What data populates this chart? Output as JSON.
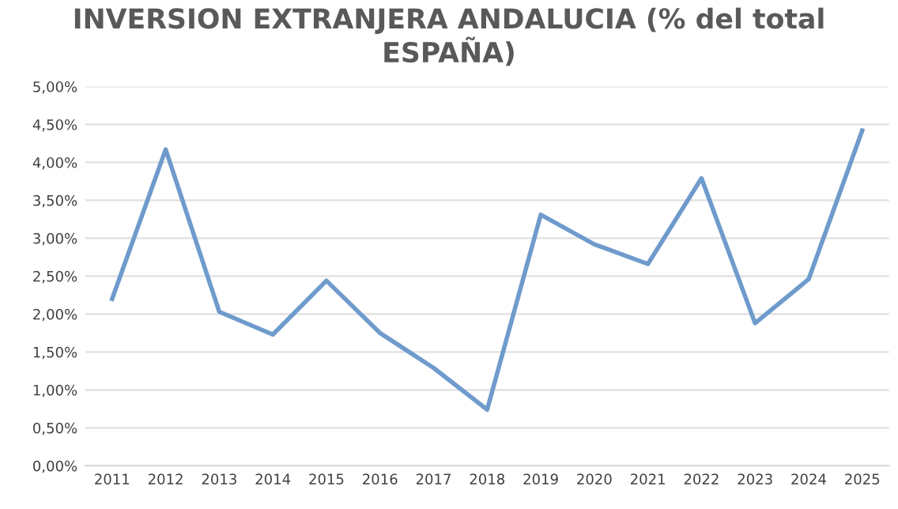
{
  "chart_data": {
    "type": "line",
    "title": "INVERSION EXTRANJERA ANDALUCIA (% del total ESPAÑA)",
    "categories": [
      "2011",
      "2012",
      "2013",
      "2014",
      "2015",
      "2016",
      "2017",
      "2018",
      "2019",
      "2020",
      "2021",
      "2022",
      "2023",
      "2024",
      "2025"
    ],
    "series": [
      {
        "color": "#6f9bcc",
        "values": [
          2.2,
          4.17,
          2.03,
          1.73,
          2.44,
          1.75,
          1.29,
          0.74,
          3.31,
          2.92,
          2.66,
          3.79,
          1.88,
          2.46,
          4.42
        ]
      }
    ],
    "ylim": [
      0,
      5
    ],
    "yticks": [
      {
        "value": 0,
        "label": "0,00%"
      },
      {
        "value": 0.5,
        "label": "0,50%"
      },
      {
        "value": 1,
        "label": "1,00%"
      },
      {
        "value": 1.5,
        "label": "1,50%"
      },
      {
        "value": 2,
        "label": "2,00%"
      },
      {
        "value": 2.5,
        "label": "2,50%"
      },
      {
        "value": 3,
        "label": "3,00%"
      },
      {
        "value": 3.5,
        "label": "3,50%"
      },
      {
        "value": 4,
        "label": "4,00%"
      },
      {
        "value": 4.5,
        "label": "4,50%"
      },
      {
        "value": 5,
        "label": "5,00%"
      }
    ],
    "grid": "y",
    "marker": "none",
    "line_style": "solid"
  }
}
